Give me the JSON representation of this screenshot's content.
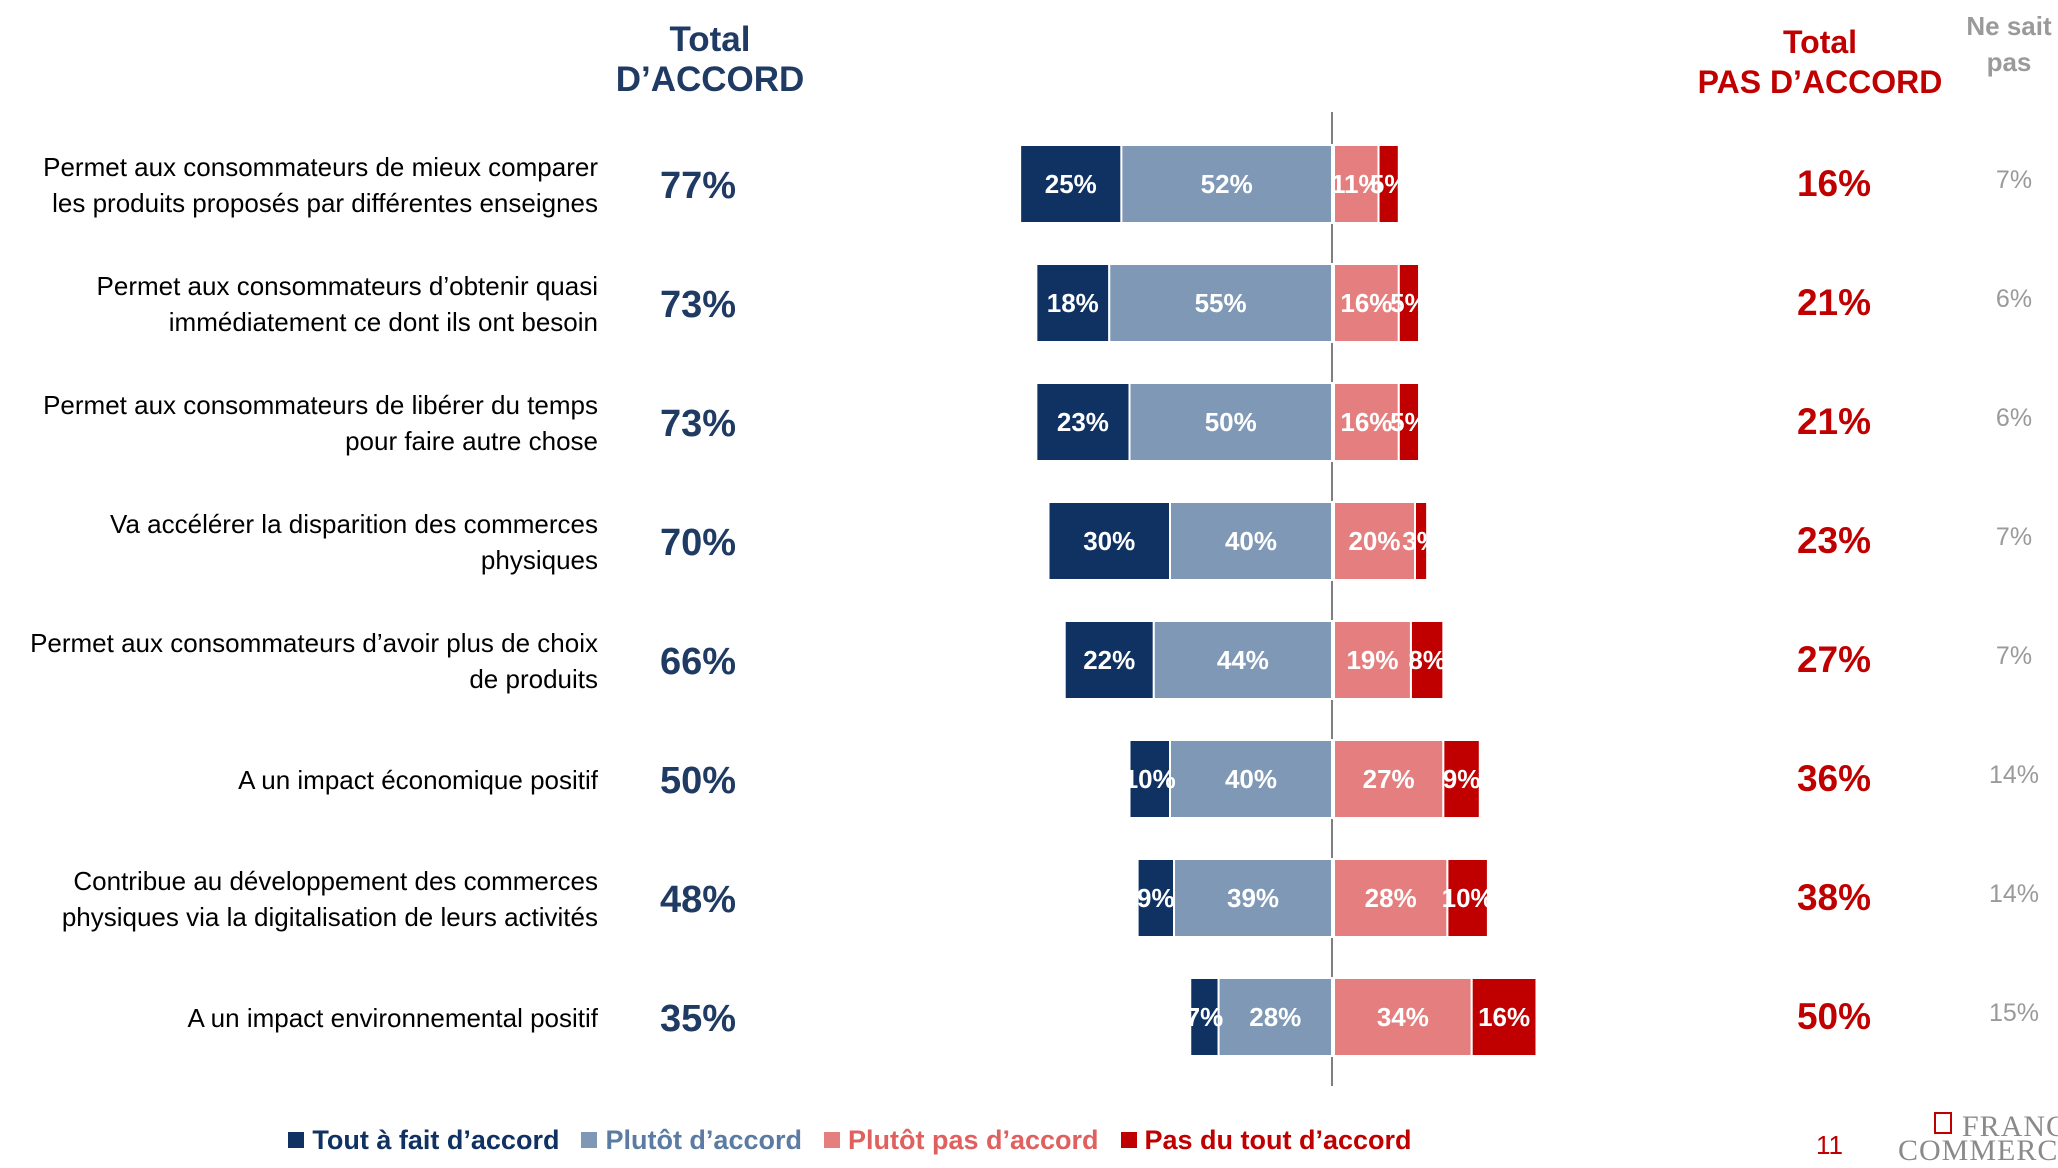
{
  "headers": {
    "total_agree_line1": "Total",
    "total_agree_line2": "D’ACCORD",
    "total_disagree_line1": "Total",
    "total_disagree_line2": "PAS D’ACCORD",
    "nsp_line1": "Ne sait",
    "nsp_line2": "pas"
  },
  "colors": {
    "tout_a_fait": "#0f3263",
    "plutot": "#7e98b5",
    "plutot_pas": "#e57f7f",
    "pas_du_tout": "#c00000",
    "total_agree_text": "#1f3a63",
    "total_disagree_text": "#c00000",
    "nsp_text": "#9a9a9a"
  },
  "chart_data": {
    "type": "bar",
    "orientation": "horizontal-diverging-stacked",
    "categories": [
      [
        "Permet aux consommateurs de mieux comparer",
        "les produits proposés par différentes enseignes"
      ],
      [
        "Permet aux consommateurs d’obtenir quasi",
        "immédiatement ce dont ils ont besoin"
      ],
      [
        "Permet aux consommateurs de libérer du temps",
        "pour faire autre chose"
      ],
      [
        "Va accélérer la disparition des commerces",
        "physiques"
      ],
      [
        "Permet aux consommateurs d’avoir plus de choix",
        "de produits"
      ],
      [
        "A un impact économique positif"
      ],
      [
        "Contribue au développement des commerces",
        "physiques via la digitalisation de leurs activités"
      ],
      [
        "A un impact environnemental positif"
      ]
    ],
    "series": [
      {
        "name": "Tout à fait d’accord",
        "side": "agree",
        "values": [
          25,
          18,
          23,
          30,
          22,
          10,
          9,
          7
        ]
      },
      {
        "name": "Plutôt d’accord",
        "side": "agree",
        "values": [
          52,
          55,
          50,
          40,
          44,
          40,
          39,
          28
        ]
      },
      {
        "name": "Plutôt pas d’accord",
        "side": "disagree",
        "values": [
          11,
          16,
          16,
          20,
          19,
          27,
          28,
          34
        ]
      },
      {
        "name": "Pas du tout d’accord",
        "side": "disagree",
        "values": [
          5,
          5,
          5,
          3,
          8,
          9,
          10,
          16
        ]
      }
    ],
    "total_agree": [
      "77%",
      "73%",
      "73%",
      "70%",
      "66%",
      "50%",
      "48%",
      "35%"
    ],
    "total_disagree": [
      "16%",
      "21%",
      "21%",
      "23%",
      "27%",
      "36%",
      "38%",
      "50%"
    ],
    "ne_sait_pas": [
      "7%",
      "6%",
      "6%",
      "7%",
      "7%",
      "14%",
      "14%",
      "15%"
    ],
    "legend_position": "bottom"
  },
  "page_number": "11",
  "logo": {
    "line1": "FRANCE",
    "line2": "COMMERCE"
  }
}
